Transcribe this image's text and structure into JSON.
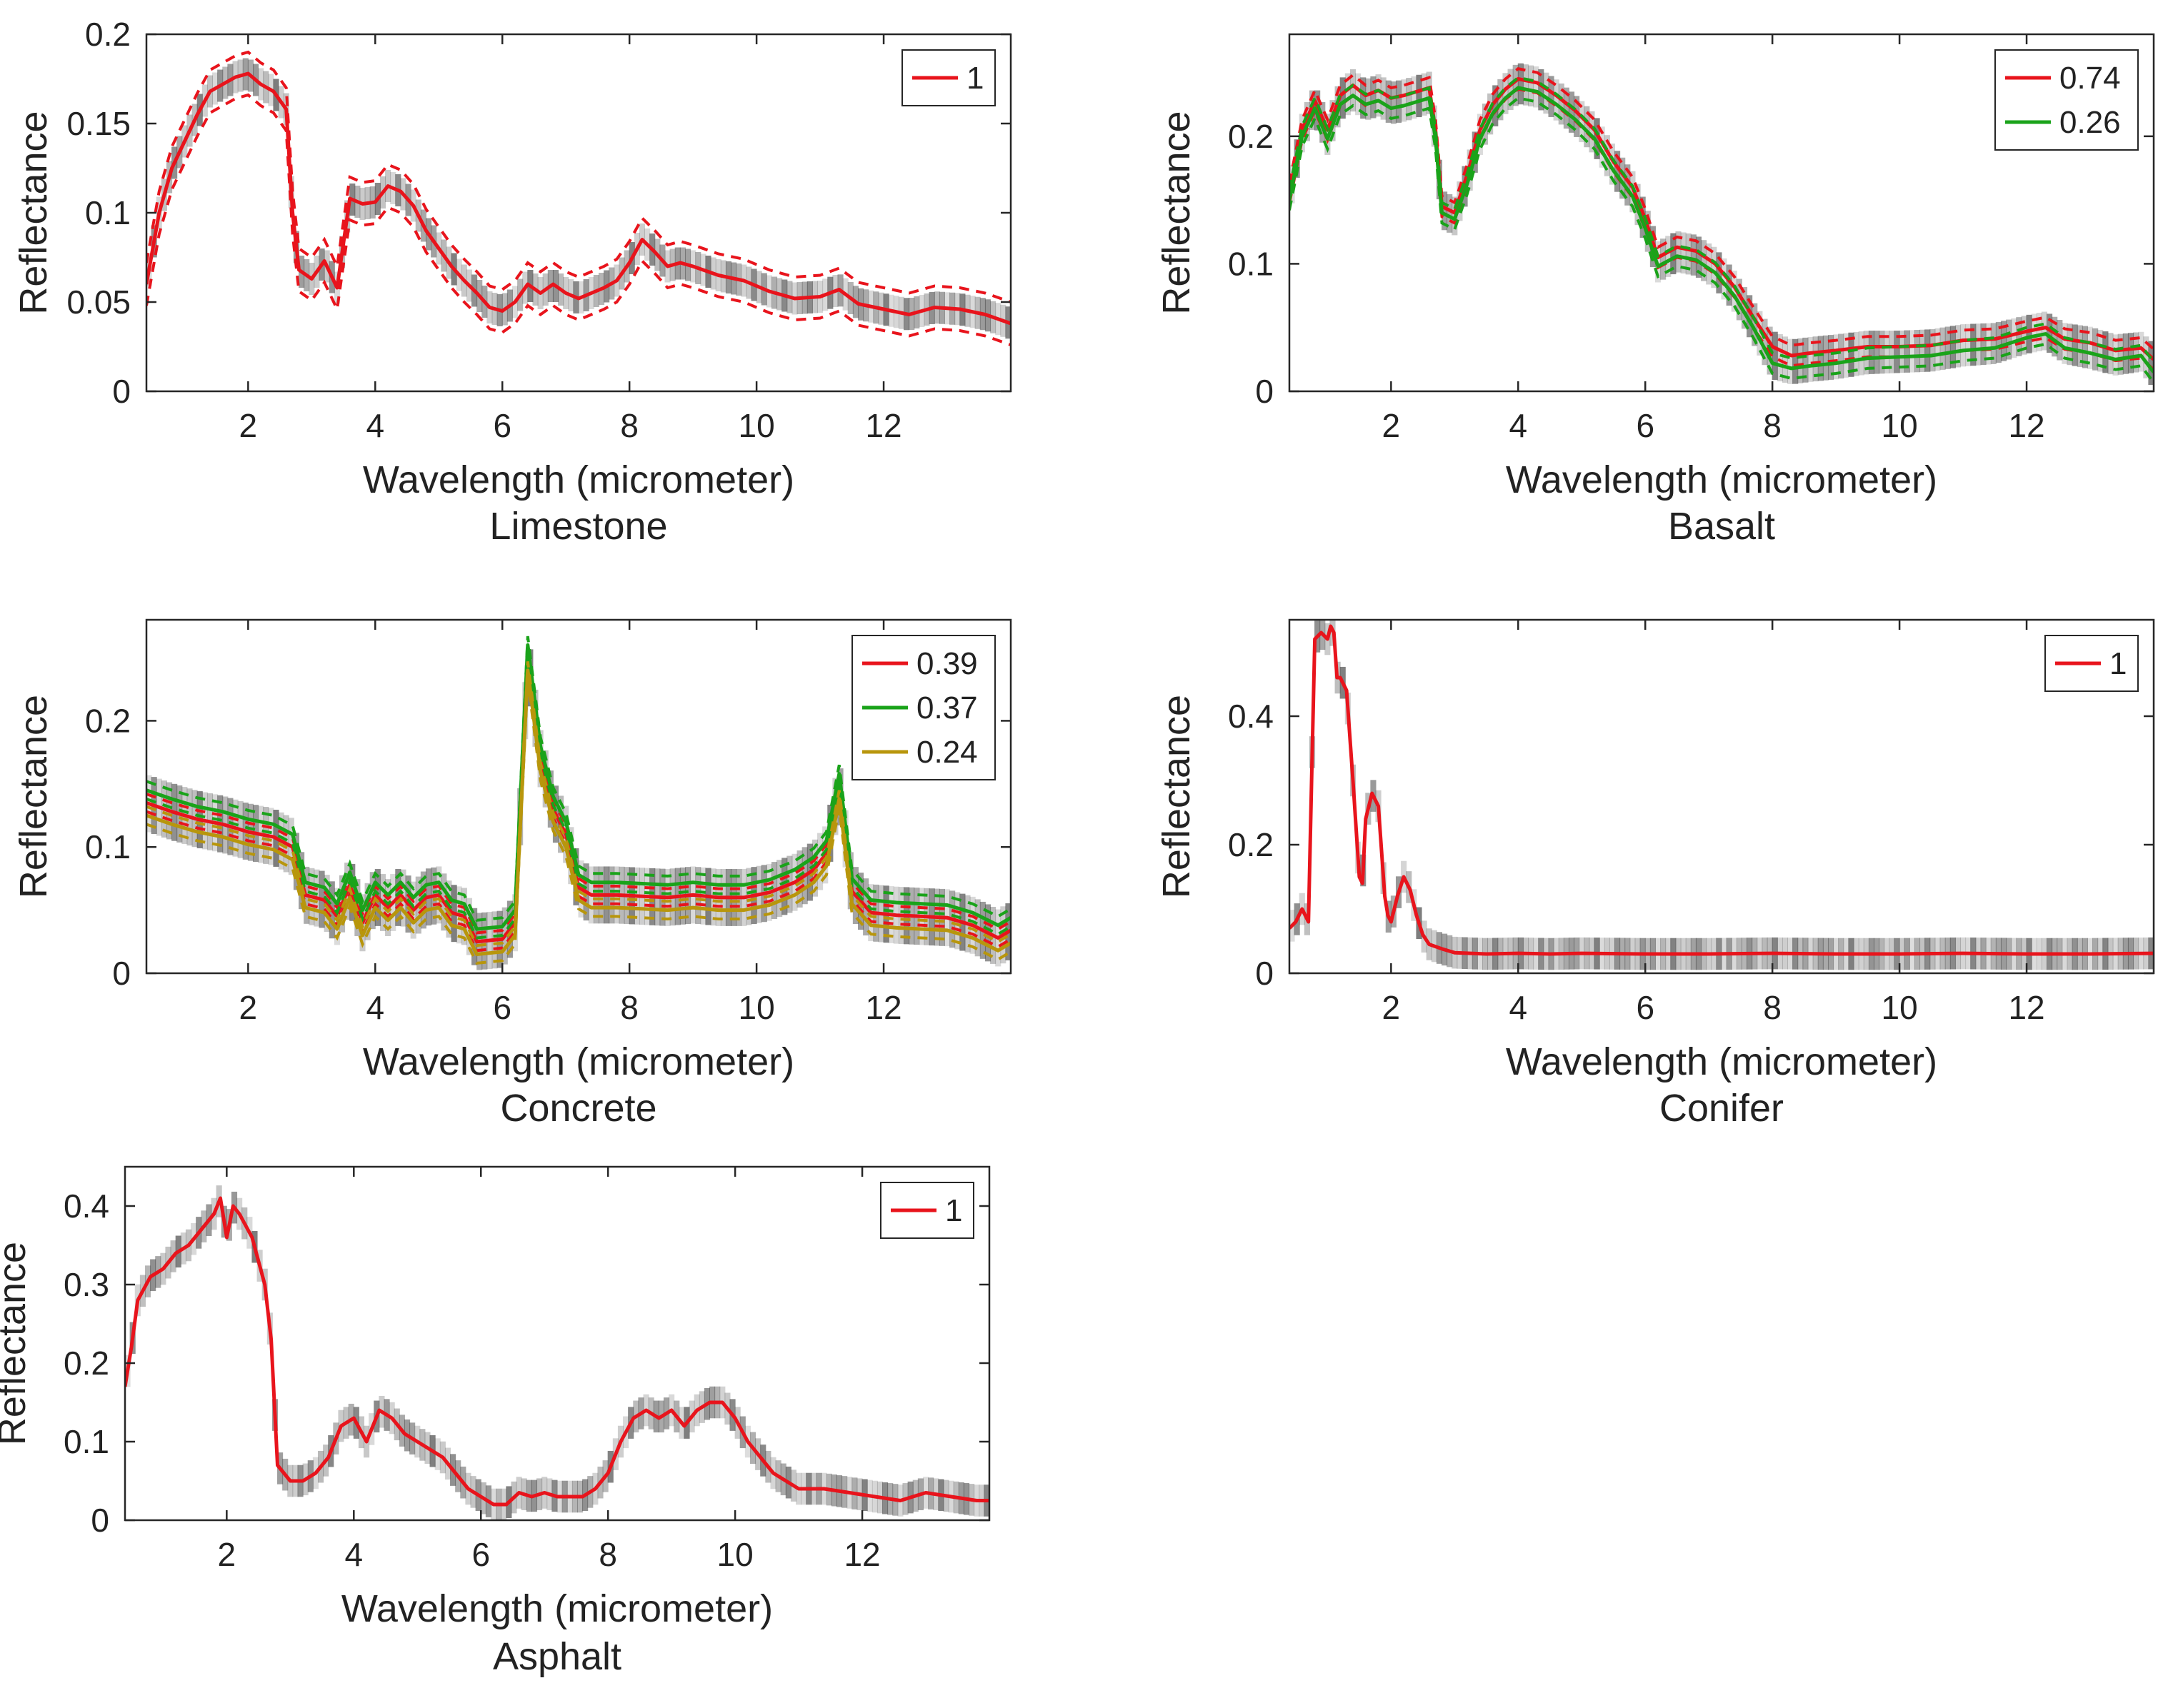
{
  "figure": {
    "background": "#ffffff",
    "axis_color": "#262626",
    "density_color": "#404040",
    "series_colors": {
      "red": "#e8141c",
      "green": "#1aa31a",
      "olive": "#b8960c"
    }
  },
  "chart_data": [
    {
      "type": "line",
      "title": "Limestone",
      "xlabel": "Wavelength (micrometer)",
      "ylabel": "Reflectance",
      "xlim": [
        0.4,
        14.0
      ],
      "ylim": [
        0,
        0.2
      ],
      "xticks": [
        2,
        4,
        6,
        8,
        10,
        12
      ],
      "yticks": [
        0,
        0.05,
        0.1,
        0.15,
        0.2
      ],
      "xtick_labels": [
        "2",
        "4",
        "6",
        "8",
        "10",
        "12"
      ],
      "ytick_labels": [
        "0",
        "0.05",
        "0.1",
        "0.15",
        "0.2"
      ],
      "legend_position": "top-right",
      "band": 0.012,
      "series": [
        {
          "name": "1",
          "color": "#e8141c",
          "x": [
            0.4,
            0.6,
            0.8,
            1.0,
            1.2,
            1.4,
            1.6,
            1.8,
            2.0,
            2.2,
            2.4,
            2.6,
            2.7,
            2.8,
            3.0,
            3.2,
            3.4,
            3.6,
            3.8,
            4.0,
            4.2,
            4.4,
            4.6,
            4.8,
            5.0,
            5.2,
            5.4,
            5.6,
            5.8,
            6.0,
            6.2,
            6.4,
            6.6,
            6.8,
            7.0,
            7.2,
            7.4,
            7.6,
            7.8,
            8.0,
            8.2,
            8.4,
            8.6,
            8.8,
            9.0,
            9.4,
            9.8,
            10.2,
            10.6,
            11.0,
            11.3,
            11.6,
            12.0,
            12.4,
            12.8,
            13.2,
            13.6,
            14.0
          ],
          "y": [
            0.06,
            0.1,
            0.125,
            0.14,
            0.155,
            0.168,
            0.172,
            0.176,
            0.178,
            0.172,
            0.168,
            0.158,
            0.1,
            0.068,
            0.063,
            0.073,
            0.058,
            0.108,
            0.105,
            0.106,
            0.115,
            0.112,
            0.104,
            0.09,
            0.08,
            0.07,
            0.062,
            0.055,
            0.047,
            0.045,
            0.05,
            0.06,
            0.055,
            0.06,
            0.055,
            0.052,
            0.055,
            0.058,
            0.062,
            0.072,
            0.085,
            0.078,
            0.07,
            0.072,
            0.07,
            0.065,
            0.062,
            0.056,
            0.052,
            0.053,
            0.057,
            0.049,
            0.046,
            0.043,
            0.047,
            0.046,
            0.043,
            0.038
          ]
        }
      ]
    },
    {
      "type": "line",
      "title": "Basalt",
      "xlabel": "Wavelength (micrometer)",
      "ylabel": "Reflectance",
      "xlim": [
        0.4,
        14.0
      ],
      "ylim": [
        0,
        0.28
      ],
      "xticks": [
        2,
        4,
        6,
        8,
        10,
        12
      ],
      "yticks": [
        0,
        0.1,
        0.2
      ],
      "xtick_labels": [
        "2",
        "4",
        "6",
        "8",
        "10",
        "12"
      ],
      "ytick_labels": [
        "0",
        "0.1",
        "0.2"
      ],
      "legend_position": "top-right",
      "band": 0.008,
      "series": [
        {
          "name": "0.74",
          "color": "#e8141c",
          "x": [
            0.4,
            0.6,
            0.8,
            1.0,
            1.2,
            1.4,
            1.6,
            1.8,
            2.0,
            2.2,
            2.4,
            2.6,
            2.7,
            2.8,
            3.0,
            3.2,
            3.4,
            3.6,
            3.8,
            4.0,
            4.3,
            4.6,
            4.9,
            5.2,
            5.5,
            5.8,
            6.0,
            6.2,
            6.5,
            6.8,
            7.1,
            7.4,
            7.7,
            8.0,
            8.3,
            8.6,
            9.0,
            9.5,
            10.0,
            10.5,
            11.0,
            11.5,
            12.0,
            12.3,
            12.6,
            13.0,
            13.4,
            13.8,
            14.0
          ],
          "y": [
            0.155,
            0.205,
            0.228,
            0.205,
            0.232,
            0.24,
            0.232,
            0.236,
            0.23,
            0.232,
            0.235,
            0.238,
            0.205,
            0.145,
            0.14,
            0.17,
            0.205,
            0.225,
            0.237,
            0.245,
            0.242,
            0.232,
            0.22,
            0.205,
            0.18,
            0.16,
            0.135,
            0.105,
            0.113,
            0.11,
            0.1,
            0.082,
            0.058,
            0.035,
            0.028,
            0.03,
            0.032,
            0.035,
            0.035,
            0.036,
            0.04,
            0.041,
            0.047,
            0.05,
            0.041,
            0.038,
            0.032,
            0.034,
            0.025
          ]
        },
        {
          "name": "0.26",
          "color": "#1aa31a",
          "x": [
            0.4,
            0.6,
            0.8,
            1.0,
            1.2,
            1.4,
            1.6,
            1.8,
            2.0,
            2.2,
            2.4,
            2.6,
            2.7,
            2.8,
            3.0,
            3.2,
            3.4,
            3.6,
            3.8,
            4.0,
            4.3,
            4.6,
            4.9,
            5.2,
            5.5,
            5.8,
            6.0,
            6.2,
            6.5,
            6.8,
            7.1,
            7.4,
            7.7,
            8.0,
            8.3,
            8.6,
            9.0,
            9.5,
            10.0,
            10.5,
            11.0,
            11.5,
            12.0,
            12.3,
            12.6,
            13.0,
            13.4,
            13.8,
            14.0
          ],
          "y": [
            0.15,
            0.2,
            0.222,
            0.198,
            0.225,
            0.232,
            0.225,
            0.228,
            0.222,
            0.224,
            0.227,
            0.23,
            0.198,
            0.14,
            0.135,
            0.163,
            0.198,
            0.218,
            0.23,
            0.238,
            0.235,
            0.225,
            0.213,
            0.198,
            0.173,
            0.153,
            0.128,
            0.098,
            0.106,
            0.103,
            0.093,
            0.075,
            0.05,
            0.022,
            0.018,
            0.02,
            0.022,
            0.026,
            0.027,
            0.028,
            0.032,
            0.034,
            0.042,
            0.045,
            0.034,
            0.03,
            0.025,
            0.028,
            0.015
          ]
        }
      ]
    },
    {
      "type": "line",
      "title": "Concrete",
      "xlabel": "Wavelength (micrometer)",
      "ylabel": "Reflectance",
      "xlim": [
        0.4,
        14.0
      ],
      "ylim": [
        0,
        0.28
      ],
      "xticks": [
        2,
        4,
        6,
        8,
        10,
        12
      ],
      "yticks": [
        0,
        0.1,
        0.2
      ],
      "xtick_labels": [
        "2",
        "4",
        "6",
        "8",
        "10",
        "12"
      ],
      "ytick_labels": [
        "0",
        "0.1",
        "0.2"
      ],
      "legend_position": "top-right",
      "band": 0.007,
      "series": [
        {
          "name": "0.39",
          "color": "#e8141c",
          "x": [
            0.4,
            0.8,
            1.2,
            1.6,
            2.0,
            2.4,
            2.7,
            2.9,
            3.2,
            3.4,
            3.6,
            3.8,
            4.0,
            4.2,
            4.4,
            4.6,
            4.8,
            5.0,
            5.2,
            5.4,
            5.6,
            5.8,
            6.0,
            6.2,
            6.4,
            6.6,
            6.8,
            7.0,
            7.2,
            7.4,
            7.8,
            8.2,
            8.6,
            9.0,
            9.4,
            9.8,
            10.2,
            10.6,
            10.9,
            11.1,
            11.3,
            11.5,
            11.8,
            12.2,
            12.6,
            13.0,
            13.4,
            13.8,
            14.0
          ],
          "y": [
            0.135,
            0.128,
            0.122,
            0.118,
            0.112,
            0.108,
            0.1,
            0.062,
            0.058,
            0.045,
            0.07,
            0.04,
            0.062,
            0.052,
            0.062,
            0.05,
            0.06,
            0.062,
            0.048,
            0.045,
            0.025,
            0.026,
            0.027,
            0.04,
            0.25,
            0.17,
            0.13,
            0.11,
            0.068,
            0.062,
            0.062,
            0.061,
            0.06,
            0.062,
            0.06,
            0.06,
            0.064,
            0.072,
            0.082,
            0.095,
            0.148,
            0.065,
            0.048,
            0.046,
            0.045,
            0.044,
            0.038,
            0.028,
            0.034
          ]
        },
        {
          "name": "0.37",
          "color": "#1aa31a",
          "x": [
            0.4,
            0.8,
            1.2,
            1.6,
            2.0,
            2.4,
            2.7,
            2.9,
            3.2,
            3.4,
            3.6,
            3.8,
            4.0,
            4.2,
            4.4,
            4.6,
            4.8,
            5.0,
            5.2,
            5.4,
            5.6,
            5.8,
            6.0,
            6.2,
            6.4,
            6.6,
            6.8,
            7.0,
            7.2,
            7.4,
            7.8,
            8.2,
            8.6,
            9.0,
            9.4,
            9.8,
            10.2,
            10.6,
            10.9,
            11.1,
            11.3,
            11.5,
            11.8,
            12.2,
            12.6,
            13.0,
            13.4,
            13.8,
            14.0
          ],
          "y": [
            0.145,
            0.138,
            0.132,
            0.128,
            0.122,
            0.118,
            0.11,
            0.072,
            0.068,
            0.055,
            0.08,
            0.05,
            0.072,
            0.062,
            0.072,
            0.06,
            0.07,
            0.072,
            0.058,
            0.055,
            0.035,
            0.036,
            0.037,
            0.05,
            0.26,
            0.18,
            0.14,
            0.12,
            0.078,
            0.072,
            0.072,
            0.071,
            0.07,
            0.072,
            0.07,
            0.07,
            0.074,
            0.082,
            0.092,
            0.105,
            0.158,
            0.075,
            0.058,
            0.056,
            0.055,
            0.054,
            0.048,
            0.038,
            0.044
          ]
        },
        {
          "name": "0.24",
          "color": "#b8960c",
          "x": [
            0.4,
            0.8,
            1.2,
            1.6,
            2.0,
            2.4,
            2.7,
            2.9,
            3.2,
            3.4,
            3.6,
            3.8,
            4.0,
            4.2,
            4.4,
            4.6,
            4.8,
            5.0,
            5.2,
            5.4,
            5.6,
            5.8,
            6.0,
            6.2,
            6.4,
            6.6,
            6.8,
            7.0,
            7.2,
            7.4,
            7.8,
            8.2,
            8.6,
            9.0,
            9.4,
            9.8,
            10.2,
            10.6,
            10.9,
            11.1,
            11.3,
            11.5,
            11.8,
            12.2,
            12.6,
            13.0,
            13.4,
            13.8,
            14.0
          ],
          "y": [
            0.125,
            0.118,
            0.112,
            0.108,
            0.102,
            0.098,
            0.09,
            0.052,
            0.048,
            0.035,
            0.06,
            0.03,
            0.052,
            0.042,
            0.052,
            0.04,
            0.05,
            0.052,
            0.038,
            0.035,
            0.015,
            0.016,
            0.017,
            0.03,
            0.24,
            0.16,
            0.12,
            0.1,
            0.058,
            0.052,
            0.052,
            0.051,
            0.05,
            0.052,
            0.05,
            0.05,
            0.054,
            0.062,
            0.072,
            0.085,
            0.138,
            0.055,
            0.038,
            0.036,
            0.035,
            0.034,
            0.028,
            0.018,
            0.024
          ]
        }
      ]
    },
    {
      "type": "line",
      "title": "Conifer",
      "xlabel": "Wavelength (micrometer)",
      "ylabel": "Reflectance",
      "xlim": [
        0.4,
        14.0
      ],
      "ylim": [
        0,
        0.55
      ],
      "xticks": [
        2,
        4,
        6,
        8,
        10,
        12
      ],
      "yticks": [
        0,
        0.2,
        0.4
      ],
      "xtick_labels": [
        "2",
        "4",
        "6",
        "8",
        "10",
        "12"
      ],
      "ytick_labels": [
        "0",
        "0.2",
        "0.4"
      ],
      "legend_position": "top-right",
      "band": 0,
      "series": [
        {
          "name": "1",
          "color": "#e8141c",
          "x": [
            0.4,
            0.5,
            0.6,
            0.7,
            0.75,
            0.8,
            0.9,
            1.0,
            1.05,
            1.1,
            1.15,
            1.2,
            1.3,
            1.4,
            1.5,
            1.55,
            1.6,
            1.7,
            1.8,
            1.9,
            1.95,
            2.0,
            2.1,
            2.2,
            2.3,
            2.4,
            2.5,
            2.6,
            2.8,
            3.0,
            3.5,
            4.0,
            4.5,
            5.0,
            6.0,
            7.0,
            8.0,
            9.0,
            10.0,
            11.0,
            12.0,
            13.0,
            14.0
          ],
          "y": [
            0.07,
            0.08,
            0.1,
            0.08,
            0.3,
            0.52,
            0.53,
            0.52,
            0.54,
            0.53,
            0.46,
            0.46,
            0.44,
            0.3,
            0.15,
            0.14,
            0.24,
            0.28,
            0.26,
            0.12,
            0.09,
            0.08,
            0.12,
            0.15,
            0.13,
            0.09,
            0.06,
            0.045,
            0.038,
            0.032,
            0.03,
            0.031,
            0.03,
            0.031,
            0.03,
            0.03,
            0.031,
            0.03,
            0.03,
            0.031,
            0.03,
            0.03,
            0.031
          ]
        }
      ]
    },
    {
      "type": "line",
      "title": "Asphalt",
      "xlabel": "Wavelength (micrometer)",
      "ylabel": "Reflectance",
      "xlim": [
        0.4,
        14.0
      ],
      "ylim": [
        0,
        0.45
      ],
      "xticks": [
        2,
        4,
        6,
        8,
        10,
        12
      ],
      "yticks": [
        0,
        0.1,
        0.2,
        0.3,
        0.4
      ],
      "xtick_labels": [
        "2",
        "4",
        "6",
        "8",
        "10",
        "12"
      ],
      "ytick_labels": [
        "0",
        "0.1",
        "0.2",
        "0.3",
        "0.4"
      ],
      "legend_position": "top-right",
      "band": 0,
      "series": [
        {
          "name": "1",
          "color": "#e8141c",
          "x": [
            0.4,
            0.5,
            0.6,
            0.8,
            1.0,
            1.2,
            1.4,
            1.6,
            1.8,
            1.9,
            2.0,
            2.1,
            2.2,
            2.4,
            2.6,
            2.7,
            2.8,
            3.0,
            3.2,
            3.4,
            3.6,
            3.8,
            4.0,
            4.2,
            4.4,
            4.6,
            4.8,
            5.0,
            5.2,
            5.4,
            5.6,
            5.8,
            6.0,
            6.2,
            6.4,
            6.6,
            6.8,
            7.0,
            7.2,
            7.4,
            7.6,
            7.8,
            8.0,
            8.2,
            8.4,
            8.6,
            8.8,
            9.0,
            9.2,
            9.4,
            9.6,
            9.8,
            10.0,
            10.2,
            10.4,
            10.6,
            10.8,
            11.0,
            11.4,
            11.8,
            12.2,
            12.6,
            13.0,
            13.4,
            13.8,
            14.0
          ],
          "y": [
            0.17,
            0.22,
            0.28,
            0.31,
            0.32,
            0.34,
            0.35,
            0.37,
            0.39,
            0.41,
            0.36,
            0.4,
            0.39,
            0.36,
            0.3,
            0.23,
            0.07,
            0.05,
            0.05,
            0.06,
            0.08,
            0.12,
            0.13,
            0.1,
            0.14,
            0.13,
            0.11,
            0.1,
            0.09,
            0.08,
            0.06,
            0.04,
            0.03,
            0.02,
            0.02,
            0.035,
            0.03,
            0.035,
            0.03,
            0.03,
            0.03,
            0.04,
            0.06,
            0.1,
            0.13,
            0.14,
            0.13,
            0.14,
            0.12,
            0.14,
            0.15,
            0.15,
            0.13,
            0.1,
            0.08,
            0.06,
            0.05,
            0.04,
            0.04,
            0.035,
            0.03,
            0.025,
            0.035,
            0.03,
            0.025,
            0.025
          ]
        }
      ]
    }
  ]
}
